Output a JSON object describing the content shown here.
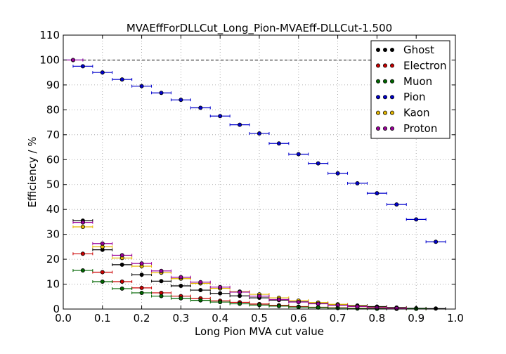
{
  "chart_data": {
    "type": "scatter",
    "title": "MVAEffForDLLCut_Long_Pion-MVAEff-DLLCut-1.500",
    "xlabel": "Long Pion MVA cut value",
    "ylabel": "Efficiency / %",
    "xlim": [
      0.0,
      1.0
    ],
    "ylim": [
      0,
      110
    ],
    "xticks": [
      "0.0",
      "0.1",
      "0.2",
      "0.3",
      "0.4",
      "0.5",
      "0.6",
      "0.7",
      "0.8",
      "0.9",
      "1.0"
    ],
    "yticks": [
      "0",
      "10",
      "20",
      "30",
      "40",
      "50",
      "60",
      "70",
      "80",
      "90",
      "100",
      "110"
    ],
    "grid": true,
    "reference_line": 100,
    "x_bin_half_width": 0.025,
    "legend_position": "top-right",
    "series": [
      {
        "name": "Ghost",
        "color": "#000000",
        "x": [
          0.05,
          0.1,
          0.15,
          0.2,
          0.25,
          0.3,
          0.35,
          0.4,
          0.45,
          0.5,
          0.55,
          0.6,
          0.65,
          0.7,
          0.75,
          0.8,
          0.85,
          0.9,
          0.95
        ],
        "values": [
          35.5,
          23.8,
          17.8,
          13.8,
          11.2,
          9.3,
          7.6,
          6.3,
          5.3,
          4.5,
          3.6,
          2.9,
          2.2,
          1.8,
          1.4,
          1.0,
          0.6,
          0.3,
          0.2
        ]
      },
      {
        "name": "Electron",
        "color": "#cc0000",
        "x": [
          0.05,
          0.1,
          0.15,
          0.2,
          0.25,
          0.3,
          0.35,
          0.4,
          0.45,
          0.5,
          0.55,
          0.6,
          0.65,
          0.7,
          0.75,
          0.8,
          0.85,
          0.9
        ],
        "values": [
          22.2,
          14.8,
          11.0,
          8.5,
          6.5,
          5.2,
          4.3,
          3.3,
          2.7,
          2.0,
          1.5,
          1.0,
          0.7,
          0.5,
          0.3,
          0.2,
          0.1,
          0.1
        ]
      },
      {
        "name": "Muon",
        "color": "#006600",
        "x": [
          0.05,
          0.1,
          0.15,
          0.2,
          0.25,
          0.3,
          0.35,
          0.4,
          0.45,
          0.5,
          0.55,
          0.6,
          0.65,
          0.7,
          0.75,
          0.8,
          0.85,
          0.9
        ],
        "values": [
          15.5,
          11.0,
          8.2,
          6.5,
          5.2,
          4.3,
          3.5,
          2.8,
          2.1,
          1.6,
          1.2,
          0.8,
          0.6,
          0.4,
          0.2,
          0.1,
          0.1,
          0.1
        ]
      },
      {
        "name": "Pion",
        "color": "#0000cc",
        "x": [
          0.025,
          0.05,
          0.1,
          0.15,
          0.2,
          0.25,
          0.3,
          0.35,
          0.4,
          0.45,
          0.5,
          0.55,
          0.6,
          0.65,
          0.7,
          0.75,
          0.8,
          0.85,
          0.9,
          0.95
        ],
        "values": [
          100,
          97.5,
          95.0,
          92.2,
          89.5,
          86.8,
          84.0,
          80.8,
          77.5,
          74.0,
          70.5,
          66.5,
          62.2,
          58.5,
          54.5,
          50.5,
          46.5,
          42.0,
          36.0,
          27.0
        ]
      },
      {
        "name": "Kaon",
        "color": "#e6b800",
        "x": [
          0.05,
          0.1,
          0.15,
          0.2,
          0.25,
          0.3,
          0.35,
          0.4,
          0.45,
          0.5,
          0.55,
          0.6,
          0.65,
          0.7,
          0.75,
          0.8,
          0.85
        ],
        "values": [
          33.0,
          25.0,
          20.5,
          17.2,
          14.6,
          12.2,
          10.3,
          8.3,
          7.0,
          5.9,
          4.5,
          3.4,
          2.6,
          1.9,
          1.2,
          0.7,
          0.4
        ]
      },
      {
        "name": "Proton",
        "color": "#990099",
        "x": [
          0.025,
          0.05,
          0.1,
          0.15,
          0.2,
          0.25,
          0.3,
          0.35,
          0.4,
          0.45,
          0.5,
          0.55,
          0.6,
          0.65,
          0.7,
          0.75,
          0.8,
          0.85
        ],
        "values": [
          100,
          34.8,
          26.3,
          21.6,
          18.3,
          15.3,
          12.8,
          10.8,
          8.8,
          6.8,
          5.2,
          3.8,
          2.8,
          2.1,
          1.5,
          1.0,
          0.6,
          0.3
        ]
      }
    ]
  }
}
